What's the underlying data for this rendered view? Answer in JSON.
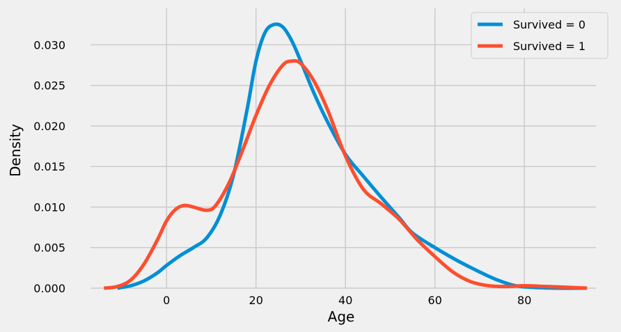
{
  "chart_data": {
    "type": "line",
    "title": "",
    "xlabel": "Age",
    "ylabel": "Density",
    "xlim": [
      -17,
      96
    ],
    "ylim": [
      0,
      0.0345
    ],
    "xticks": [
      0,
      20,
      40,
      60,
      80
    ],
    "xtick_labels": [
      "0",
      "20",
      "40",
      "60",
      "80"
    ],
    "yticks": [
      0,
      0.005,
      0.01,
      0.015,
      0.02,
      0.025,
      0.03
    ],
    "ytick_labels": [
      "0.000",
      "0.005",
      "0.010",
      "0.015",
      "0.020",
      "0.025",
      "0.030"
    ],
    "grid": true,
    "legend_position": "top-right",
    "series": [
      {
        "name": "Survived = 0",
        "color": "#008fd5",
        "points": [
          [
            -11,
            0.0
          ],
          [
            -8,
            0.0003
          ],
          [
            -5,
            0.0009
          ],
          [
            -2,
            0.0019
          ],
          [
            0,
            0.0028
          ],
          [
            3,
            0.004
          ],
          [
            6,
            0.005
          ],
          [
            9,
            0.0062
          ],
          [
            12,
            0.009
          ],
          [
            15,
            0.014
          ],
          [
            18,
            0.022
          ],
          [
            20,
            0.028
          ],
          [
            22,
            0.0315
          ],
          [
            24,
            0.0325
          ],
          [
            26,
            0.0322
          ],
          [
            28,
            0.0305
          ],
          [
            30,
            0.028
          ],
          [
            33,
            0.024
          ],
          [
            36,
            0.0205
          ],
          [
            40,
            0.0165
          ],
          [
            44,
            0.0138
          ],
          [
            48,
            0.0112
          ],
          [
            52,
            0.0087
          ],
          [
            55,
            0.0068
          ],
          [
            60,
            0.005
          ],
          [
            65,
            0.0034
          ],
          [
            70,
            0.002
          ],
          [
            74,
            0.001
          ],
          [
            78,
            0.0003
          ],
          [
            82,
            0.0001
          ],
          [
            88,
            0.0
          ],
          [
            94,
            0.0
          ]
        ]
      },
      {
        "name": "Survived = 1",
        "color": "#fc4f30",
        "points": [
          [
            -14,
            0.0
          ],
          [
            -11,
            0.0002
          ],
          [
            -8,
            0.001
          ],
          [
            -5,
            0.003
          ],
          [
            -2,
            0.006
          ],
          [
            0,
            0.0083
          ],
          [
            2,
            0.0097
          ],
          [
            4,
            0.0102
          ],
          [
            6,
            0.01
          ],
          [
            9,
            0.0096
          ],
          [
            11,
            0.0102
          ],
          [
            14,
            0.013
          ],
          [
            17,
            0.017
          ],
          [
            20,
            0.0213
          ],
          [
            23,
            0.025
          ],
          [
            26,
            0.0275
          ],
          [
            28,
            0.028
          ],
          [
            30,
            0.0277
          ],
          [
            33,
            0.0255
          ],
          [
            36,
            0.022
          ],
          [
            40,
            0.0163
          ],
          [
            44,
            0.0122
          ],
          [
            48,
            0.0104
          ],
          [
            52,
            0.0085
          ],
          [
            56,
            0.006
          ],
          [
            60,
            0.0039
          ],
          [
            64,
            0.002
          ],
          [
            68,
            0.0008
          ],
          [
            72,
            0.0003
          ],
          [
            76,
            0.0002
          ],
          [
            80,
            0.0003
          ],
          [
            85,
            0.0002
          ],
          [
            90,
            0.0001
          ],
          [
            94,
            0.0
          ]
        ]
      }
    ]
  }
}
